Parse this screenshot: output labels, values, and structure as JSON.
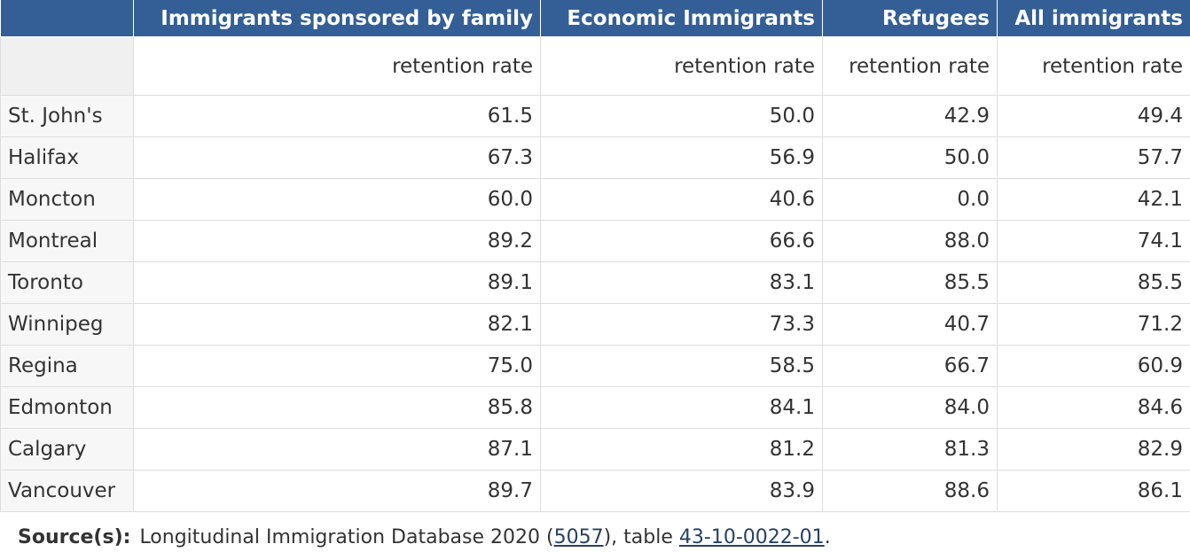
{
  "table": {
    "columns": [
      "Immigrants sponsored by family",
      "Economic Immigrants",
      "Refugees",
      "All immigrants"
    ],
    "subheaders": [
      "retention rate",
      "retention rate",
      "retention rate",
      "retention rate"
    ],
    "rows": [
      {
        "label": "St. John's",
        "values": [
          "61.5",
          "50.0",
          "42.9",
          "49.4"
        ]
      },
      {
        "label": "Halifax",
        "values": [
          "67.3",
          "56.9",
          "50.0",
          "57.7"
        ]
      },
      {
        "label": "Moncton",
        "values": [
          "60.0",
          "40.6",
          "0.0",
          "42.1"
        ]
      },
      {
        "label": "Montreal",
        "values": [
          "89.2",
          "66.6",
          "88.0",
          "74.1"
        ]
      },
      {
        "label": "Toronto",
        "values": [
          "89.1",
          "83.1",
          "85.5",
          "85.5"
        ]
      },
      {
        "label": "Winnipeg",
        "values": [
          "82.1",
          "73.3",
          "40.7",
          "71.2"
        ]
      },
      {
        "label": "Regina",
        "values": [
          "75.0",
          "58.5",
          "66.7",
          "60.9"
        ]
      },
      {
        "label": "Edmonton",
        "values": [
          "85.8",
          "84.1",
          "84.0",
          "84.6"
        ]
      },
      {
        "label": "Calgary",
        "values": [
          "87.1",
          "81.2",
          "81.3",
          "82.9"
        ]
      },
      {
        "label": "Vancouver",
        "values": [
          "89.7",
          "83.9",
          "88.6",
          "86.1"
        ]
      }
    ]
  },
  "source": {
    "label": "Source(s):",
    "text_before": "Longitudinal Immigration Database 2020 (",
    "link1": "5057",
    "text_middle": "), table ",
    "link2": "43-10-0022-01",
    "text_after": "."
  }
}
